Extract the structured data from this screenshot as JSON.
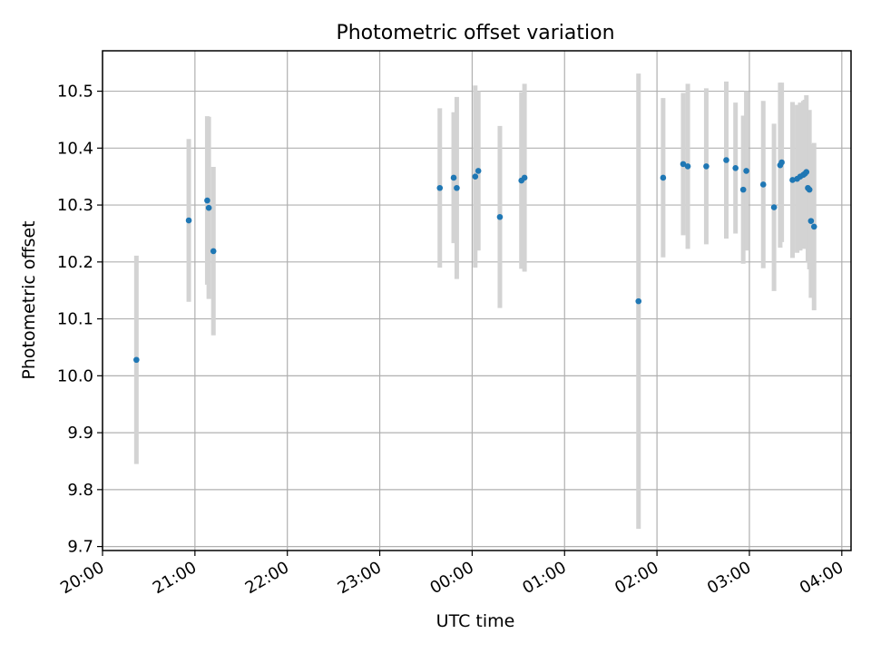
{
  "chart_data": {
    "type": "scatter",
    "title": "Photometric offset variation",
    "xlabel": "UTC time",
    "ylabel": "Photometric offset",
    "x_ticks": [
      "20:00",
      "21:00",
      "22:00",
      "23:00",
      "00:00",
      "01:00",
      "02:00",
      "03:00",
      "04:00"
    ],
    "y_ticks": [
      "9.7",
      "9.8",
      "9.9",
      "10.0",
      "10.1",
      "10.2",
      "10.3",
      "10.4",
      "10.5"
    ],
    "xlim": [
      "20:00",
      "04:06"
    ],
    "ylim": [
      9.693,
      10.571
    ],
    "grid": true,
    "colors": {
      "point": "#1f77b4",
      "errorbar": "#d3d3d3",
      "grid": "#b0b0b0",
      "axes": "#000000"
    },
    "points": [
      {
        "x": "20:22",
        "y": 10.028,
        "err": 0.183
      },
      {
        "x": "20:56",
        "y": 10.273,
        "err": 0.143
      },
      {
        "x": "21:08",
        "y": 10.308,
        "err": 0.148
      },
      {
        "x": "21:09",
        "y": 10.295,
        "err": 0.16
      },
      {
        "x": "21:12",
        "y": 10.219,
        "err": 0.148
      },
      {
        "x": "23:39",
        "y": 10.33,
        "err": 0.14
      },
      {
        "x": "23:48",
        "y": 10.348,
        "err": 0.115
      },
      {
        "x": "23:50",
        "y": 10.33,
        "err": 0.16
      },
      {
        "x": "00:02",
        "y": 10.35,
        "err": 0.16
      },
      {
        "x": "00:04",
        "y": 10.36,
        "err": 0.14
      },
      {
        "x": "00:18",
        "y": 10.279,
        "err": 0.16
      },
      {
        "x": "00:32",
        "y": 10.343,
        "err": 0.155
      },
      {
        "x": "00:34",
        "y": 10.348,
        "err": 0.165
      },
      {
        "x": "01:48",
        "y": 10.131,
        "err": 0.4
      },
      {
        "x": "02:04",
        "y": 10.348,
        "err": 0.14
      },
      {
        "x": "02:17",
        "y": 10.372,
        "err": 0.125
      },
      {
        "x": "02:20",
        "y": 10.368,
        "err": 0.145
      },
      {
        "x": "02:32",
        "y": 10.368,
        "err": 0.137
      },
      {
        "x": "02:45",
        "y": 10.379,
        "err": 0.138
      },
      {
        "x": "02:51",
        "y": 10.365,
        "err": 0.115
      },
      {
        "x": "02:56",
        "y": 10.327,
        "err": 0.13
      },
      {
        "x": "02:58",
        "y": 10.36,
        "err": 0.14
      },
      {
        "x": "03:09",
        "y": 10.336,
        "err": 0.147
      },
      {
        "x": "03:16",
        "y": 10.296,
        "err": 0.147
      },
      {
        "x": "03:20",
        "y": 10.37,
        "err": 0.145
      },
      {
        "x": "03:21",
        "y": 10.375,
        "err": 0.14
      },
      {
        "x": "03:28",
        "y": 10.344,
        "err": 0.137
      },
      {
        "x": "03:31",
        "y": 10.346,
        "err": 0.13
      },
      {
        "x": "03:33",
        "y": 10.35,
        "err": 0.13
      },
      {
        "x": "03:35",
        "y": 10.353,
        "err": 0.13
      },
      {
        "x": "03:36",
        "y": 10.355,
        "err": 0.13
      },
      {
        "x": "03:37",
        "y": 10.358,
        "err": 0.135
      },
      {
        "x": "03:38",
        "y": 10.33,
        "err": 0.13
      },
      {
        "x": "03:39",
        "y": 10.327,
        "err": 0.14
      },
      {
        "x": "03:40",
        "y": 10.272,
        "err": 0.135
      },
      {
        "x": "03:42",
        "y": 10.262,
        "err": 0.147
      }
    ]
  }
}
